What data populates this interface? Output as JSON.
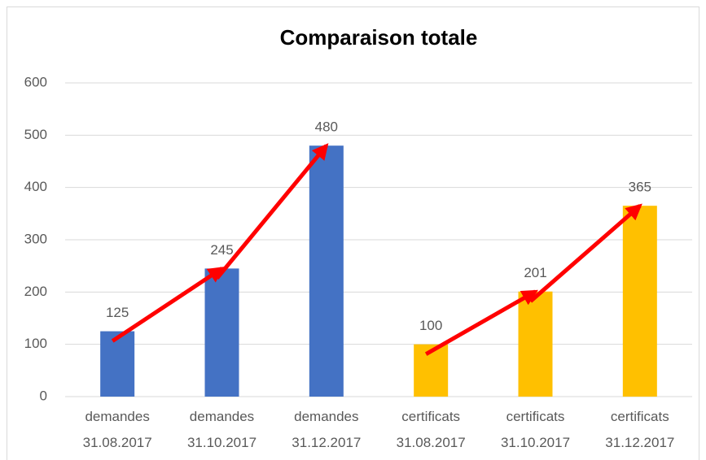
{
  "chart_data": {
    "type": "bar",
    "title": "Comparaison totale",
    "categories": [
      "demandes 31.08.2017",
      "demandes 31.10.2017",
      "demandes 31.12.2017",
      "certificats 31.08.2017",
      "certificats 31.10.2017",
      "certificats 31.12.2017"
    ],
    "values": [
      125,
      245,
      480,
      100,
      201,
      365
    ],
    "colors": [
      "#4472c4",
      "#4472c4",
      "#4472c4",
      "#ffc000",
      "#ffc000",
      "#ffc000"
    ],
    "arrow_color": "#ff0000",
    "ylim": [
      0,
      600
    ],
    "yticks": [
      0,
      100,
      200,
      300,
      400,
      500,
      600
    ],
    "grid": true
  }
}
